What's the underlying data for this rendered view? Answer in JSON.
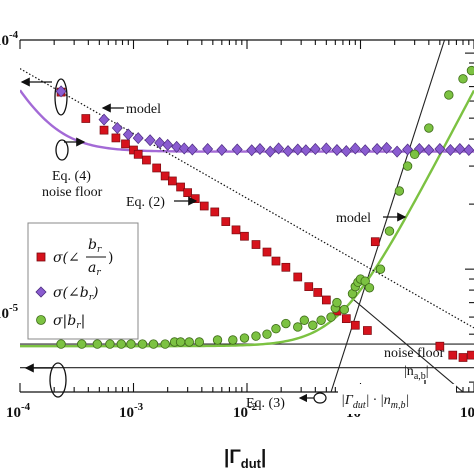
{
  "chart_data": {
    "type": "scatter",
    "xscale": "log",
    "yscale": "log",
    "xlim": [
      0.0001,
      1
    ],
    "ylim": [
      2.7e-06,
      0.000115
    ],
    "xlabel": "|Γdut|",
    "ylabel": "",
    "x_ticks": [
      {
        "value": 0.0001,
        "base": "10",
        "exp": "-4"
      },
      {
        "value": 0.001,
        "base": "10",
        "exp": "-3"
      },
      {
        "value": 0.01,
        "base": "10",
        "exp": "-2"
      },
      {
        "value": 0.1,
        "base": "10",
        "exp": "-1"
      },
      {
        "value": 1,
        "base": "10",
        "exp": "0"
      }
    ],
    "y_ticks": [
      {
        "value": 0.0001,
        "base": "10",
        "exp": "-4"
      },
      {
        "value": 1e-05,
        "base": "10",
        "exp": "-5"
      }
    ],
    "legend_position": "left-middle",
    "legend": [
      {
        "series": "red",
        "label_prefix": "σ(∠",
        "frac_num": "b",
        "frac_num_sub": "r",
        "frac_den": "a",
        "frac_den_sub": "r",
        "label_suffix": ")"
      },
      {
        "series": "purple",
        "label": "σ(∠b",
        "sub": "r",
        "suffix": ")"
      },
      {
        "series": "green",
        "label": "σ|b",
        "sub": "r",
        "suffix": "|"
      }
    ],
    "series": [
      {
        "key": "red",
        "name": "σ(∠br/ar)",
        "marker": "square",
        "color": "#d6121c",
        "points": [
          [
            0.00023,
            6.6e-05
          ],
          [
            0.00038,
            4.98e-05
          ],
          [
            0.00055,
            4.4e-05
          ],
          [
            0.0007,
            4.05e-05
          ],
          [
            0.00085,
            3.8e-05
          ],
          [
            0.001,
            3.56e-05
          ],
          [
            0.0011,
            3.4e-05
          ],
          [
            0.0013,
            3.2e-05
          ],
          [
            0.0016,
            2.94e-05
          ],
          [
            0.0019,
            2.7e-05
          ],
          [
            0.0022,
            2.56e-05
          ],
          [
            0.0026,
            2.4e-05
          ],
          [
            0.003,
            2.26e-05
          ],
          [
            0.0035,
            2.12e-05
          ],
          [
            0.0042,
            1.96e-05
          ],
          [
            0.0052,
            1.84e-05
          ],
          [
            0.0065,
            1.66e-05
          ],
          [
            0.008,
            1.52e-05
          ],
          [
            0.0095,
            1.42e-05
          ],
          [
            0.012,
            1.3e-05
          ],
          [
            0.015,
            1.2e-05
          ],
          [
            0.018,
            1.09e-05
          ],
          [
            0.022,
            1.02e-05
          ],
          [
            0.028,
            9.2e-06
          ],
          [
            0.035,
            8.3e-06
          ],
          [
            0.042,
            7.8e-06
          ],
          [
            0.05,
            7.2e-06
          ],
          [
            0.062,
            6.4e-06
          ],
          [
            0.075,
            5.9e-06
          ],
          [
            0.09,
            5.5e-06
          ],
          [
            0.115,
            5.2e-06
          ],
          [
            0.135,
            1.34e-05
          ],
          [
            0.5,
            4.4e-06
          ],
          [
            0.65,
            4e-06
          ],
          [
            0.8,
            3.9e-06
          ],
          [
            0.95,
            4e-06
          ]
        ]
      },
      {
        "key": "purple",
        "name": "σ(∠br)",
        "marker": "diamond",
        "color": "#8a5cd0",
        "points": [
          [
            0.00023,
            6.65e-05
          ],
          [
            0.00055,
            4.92e-05
          ],
          [
            0.00072,
            4.5e-05
          ],
          [
            0.0009,
            4.2e-05
          ],
          [
            0.0011,
            4.04e-05
          ],
          [
            0.0014,
            3.95e-05
          ],
          [
            0.0017,
            3.84e-05
          ],
          [
            0.002,
            3.76e-05
          ],
          [
            0.0024,
            3.68e-05
          ],
          [
            0.0028,
            3.62e-05
          ],
          [
            0.0033,
            3.58e-05
          ],
          [
            0.0045,
            3.6e-05
          ],
          [
            0.006,
            3.56e-05
          ],
          [
            0.0082,
            3.58e-05
          ],
          [
            0.011,
            3.55e-05
          ],
          [
            0.013,
            3.6e-05
          ],
          [
            0.016,
            3.5e-05
          ],
          [
            0.019,
            3.62e-05
          ],
          [
            0.023,
            3.52e-05
          ],
          [
            0.028,
            3.58e-05
          ],
          [
            0.033,
            3.55e-05
          ],
          [
            0.04,
            3.6e-05
          ],
          [
            0.05,
            3.62e-05
          ],
          [
            0.062,
            3.56e-05
          ],
          [
            0.075,
            3.52e-05
          ],
          [
            0.09,
            3.62e-05
          ],
          [
            0.11,
            3.55e-05
          ],
          [
            0.14,
            3.6e-05
          ],
          [
            0.17,
            3.64e-05
          ],
          [
            0.21,
            3.5e-05
          ],
          [
            0.26,
            3.58e-05
          ],
          [
            0.33,
            3.6e-05
          ],
          [
            0.4,
            3.56e-05
          ],
          [
            0.5,
            3.6e-05
          ],
          [
            0.62,
            3.56e-05
          ],
          [
            0.75,
            3.6e-05
          ],
          [
            0.9,
            3.56e-05
          ]
        ]
      },
      {
        "key": "green",
        "name": "σ|br|",
        "marker": "circle",
        "color": "#7cc242",
        "points": [
          [
            0.00023,
            4.5e-06
          ],
          [
            0.00035,
            4.5e-06
          ],
          [
            0.00048,
            4.5e-06
          ],
          [
            0.00062,
            4.5e-06
          ],
          [
            0.00078,
            4.5e-06
          ],
          [
            0.00095,
            4.5e-06
          ],
          [
            0.0012,
            4.5e-06
          ],
          [
            0.0015,
            4.5e-06
          ],
          [
            0.0019,
            4.5e-06
          ],
          [
            0.0023,
            4.6e-06
          ],
          [
            0.0026,
            4.6e-06
          ],
          [
            0.0031,
            4.6e-06
          ],
          [
            0.0038,
            4.6e-06
          ],
          [
            0.0055,
            4.7e-06
          ],
          [
            0.0075,
            4.7e-06
          ],
          [
            0.0095,
            4.8e-06
          ],
          [
            0.012,
            4.9e-06
          ],
          [
            0.015,
            5e-06
          ],
          [
            0.018,
            5.3e-06
          ],
          [
            0.022,
            5.6e-06
          ],
          [
            0.028,
            5.4e-06
          ],
          [
            0.032,
            5.8e-06
          ],
          [
            0.038,
            5.5e-06
          ],
          [
            0.045,
            5.8e-06
          ],
          [
            0.055,
            6e-06
          ],
          [
            0.06,
            6.6e-06
          ],
          [
            0.062,
            7e-06
          ],
          [
            0.072,
            6.5e-06
          ],
          [
            0.085,
            7.7e-06
          ],
          [
            0.09,
            8.3e-06
          ],
          [
            0.095,
            8.7e-06
          ],
          [
            0.1,
            9e-06
          ],
          [
            0.11,
            8.8e-06
          ],
          [
            0.12,
            8.2e-06
          ],
          [
            0.15,
            1e-05
          ],
          [
            0.18,
            1.5e-05
          ],
          [
            0.22,
            2.3e-05
          ],
          [
            0.26,
            3e-05
          ],
          [
            0.3,
            3.4e-05
          ],
          [
            0.4,
            4.5e-05
          ],
          [
            0.6,
            6.4e-05
          ],
          [
            0.8,
            7.6e-05
          ],
          [
            0.95,
            8.3e-05
          ]
        ]
      }
    ],
    "curves": [
      {
        "name": "model (purple)",
        "color": "#a36ad6",
        "formula": "sqrt(2.5e-5^2*(2.3e-4/x)^2 + 3.5e-5^2)"
      },
      {
        "name": "model (green)",
        "color": "#7cc242",
        "formula": "sqrt(4.4e-6^2 + (6.7e-5*x)^2)"
      },
      {
        "name": "Eq. (2)",
        "color": "#111111",
        "style": "dotted",
        "formula": "6.6e-5*(2.3e-4/x)^0.3"
      }
    ],
    "reference_lines": [
      {
        "name": "Eq. (4) noise floor",
        "y": 3.5e-06
      },
      {
        "name": "Eq. (3) noise floor",
        "y": 4.5e-06
      },
      {
        "name": "|Γdut|·|nm,b|",
        "points": [
          [
            0.055,
            2.7e-06
          ],
          [
            0.55,
            0.000115
          ]
        ]
      },
      {
        "name": "Eq. (3) diagonal",
        "points": [
          [
            0.08,
            7.5e-06
          ],
          [
            0.8,
            2.7e-06
          ]
        ]
      }
    ],
    "annotations": {
      "model_top": "model",
      "eq4": "Eq. (4)",
      "noise_floor_top": "noise floor",
      "eq2": "Eq. (2)",
      "model_right": "model",
      "noise_floor_right": "noise floor",
      "n_ab_pre": "|n",
      "n_ab_sub": "a,b",
      "n_ab_post": "|",
      "eq3": "Eq. (3)",
      "gamma_term": "|Γ",
      "gamma_sub": "dut",
      "gamma_mid": "| · |n",
      "n_mb_sub": "m,b",
      "gamma_end": "|"
    }
  }
}
